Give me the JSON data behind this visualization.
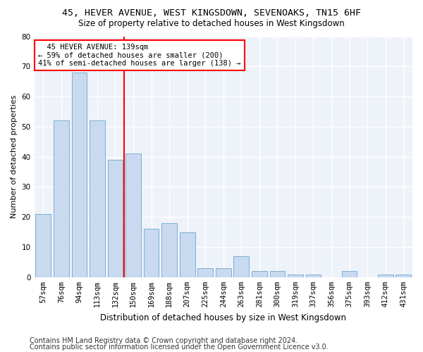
{
  "title1": "45, HEVER AVENUE, WEST KINGSDOWN, SEVENOAKS, TN15 6HF",
  "title2": "Size of property relative to detached houses in West Kingsdown",
  "xlabel": "Distribution of detached houses by size in West Kingsdown",
  "ylabel": "Number of detached properties",
  "categories": [
    "57sqm",
    "76sqm",
    "94sqm",
    "113sqm",
    "132sqm",
    "150sqm",
    "169sqm",
    "188sqm",
    "207sqm",
    "225sqm",
    "244sqm",
    "263sqm",
    "281sqm",
    "300sqm",
    "319sqm",
    "337sqm",
    "356sqm",
    "375sqm",
    "393sqm",
    "412sqm",
    "431sqm"
  ],
  "values": [
    21,
    52,
    68,
    52,
    39,
    41,
    16,
    18,
    15,
    3,
    3,
    7,
    2,
    2,
    1,
    1,
    0,
    2,
    0,
    1,
    1
  ],
  "bar_color": "#c9daf0",
  "bar_edge_color": "#7bafd4",
  "red_line_x": 4,
  "annotation_text": "  45 HEVER AVENUE: 139sqm\n← 59% of detached houses are smaller (200)\n41% of semi-detached houses are larger (138) →",
  "annotation_box_color": "white",
  "annotation_box_edge_color": "red",
  "ylim": [
    0,
    80
  ],
  "yticks": [
    0,
    10,
    20,
    30,
    40,
    50,
    60,
    70,
    80
  ],
  "footer1": "Contains HM Land Registry data © Crown copyright and database right 2024.",
  "footer2": "Contains public sector information licensed under the Open Government Licence v3.0.",
  "bg_color": "#eef2f9",
  "grid_color": "#ffffff",
  "title1_fontsize": 9.5,
  "title2_fontsize": 8.5,
  "xlabel_fontsize": 8.5,
  "ylabel_fontsize": 8,
  "tick_fontsize": 7.5,
  "annotation_fontsize": 7.5,
  "footer_fontsize": 7
}
